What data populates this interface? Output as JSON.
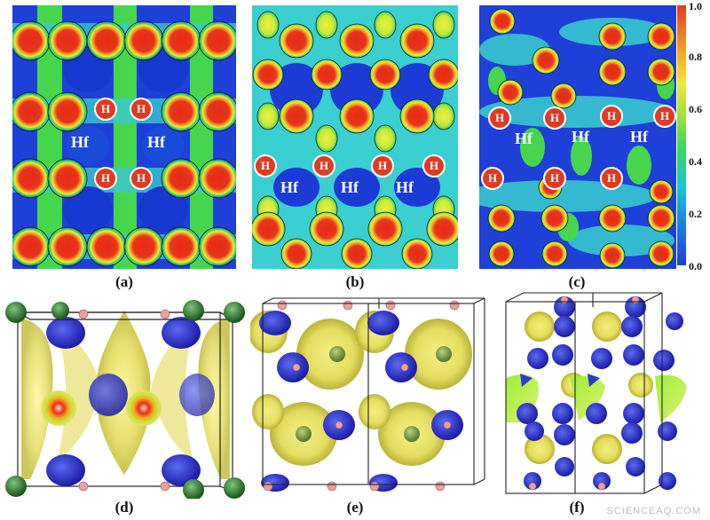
{
  "panels": {
    "a": {
      "caption": "(a)",
      "hf_label": "Hf",
      "h_label": "H"
    },
    "b": {
      "caption": "(b)",
      "hf_label": "Hf",
      "h_label": "H"
    },
    "c": {
      "caption": "(c)",
      "hf_label": "Hf",
      "h_label": "H"
    },
    "d": {
      "caption": "(d)"
    },
    "e": {
      "caption": "(e)"
    },
    "f": {
      "caption": "(f)"
    }
  },
  "colorbar": {
    "ticks": [
      "1.0",
      "0.8",
      "0.6",
      "0.4",
      "0.2",
      "0.0"
    ],
    "colors": [
      "#1f3fd8",
      "#18c6d8",
      "#3ad85a",
      "#f0e83a",
      "#f5a623",
      "#e5391e"
    ]
  },
  "watermark": "SCIENCEAQ.COM"
}
